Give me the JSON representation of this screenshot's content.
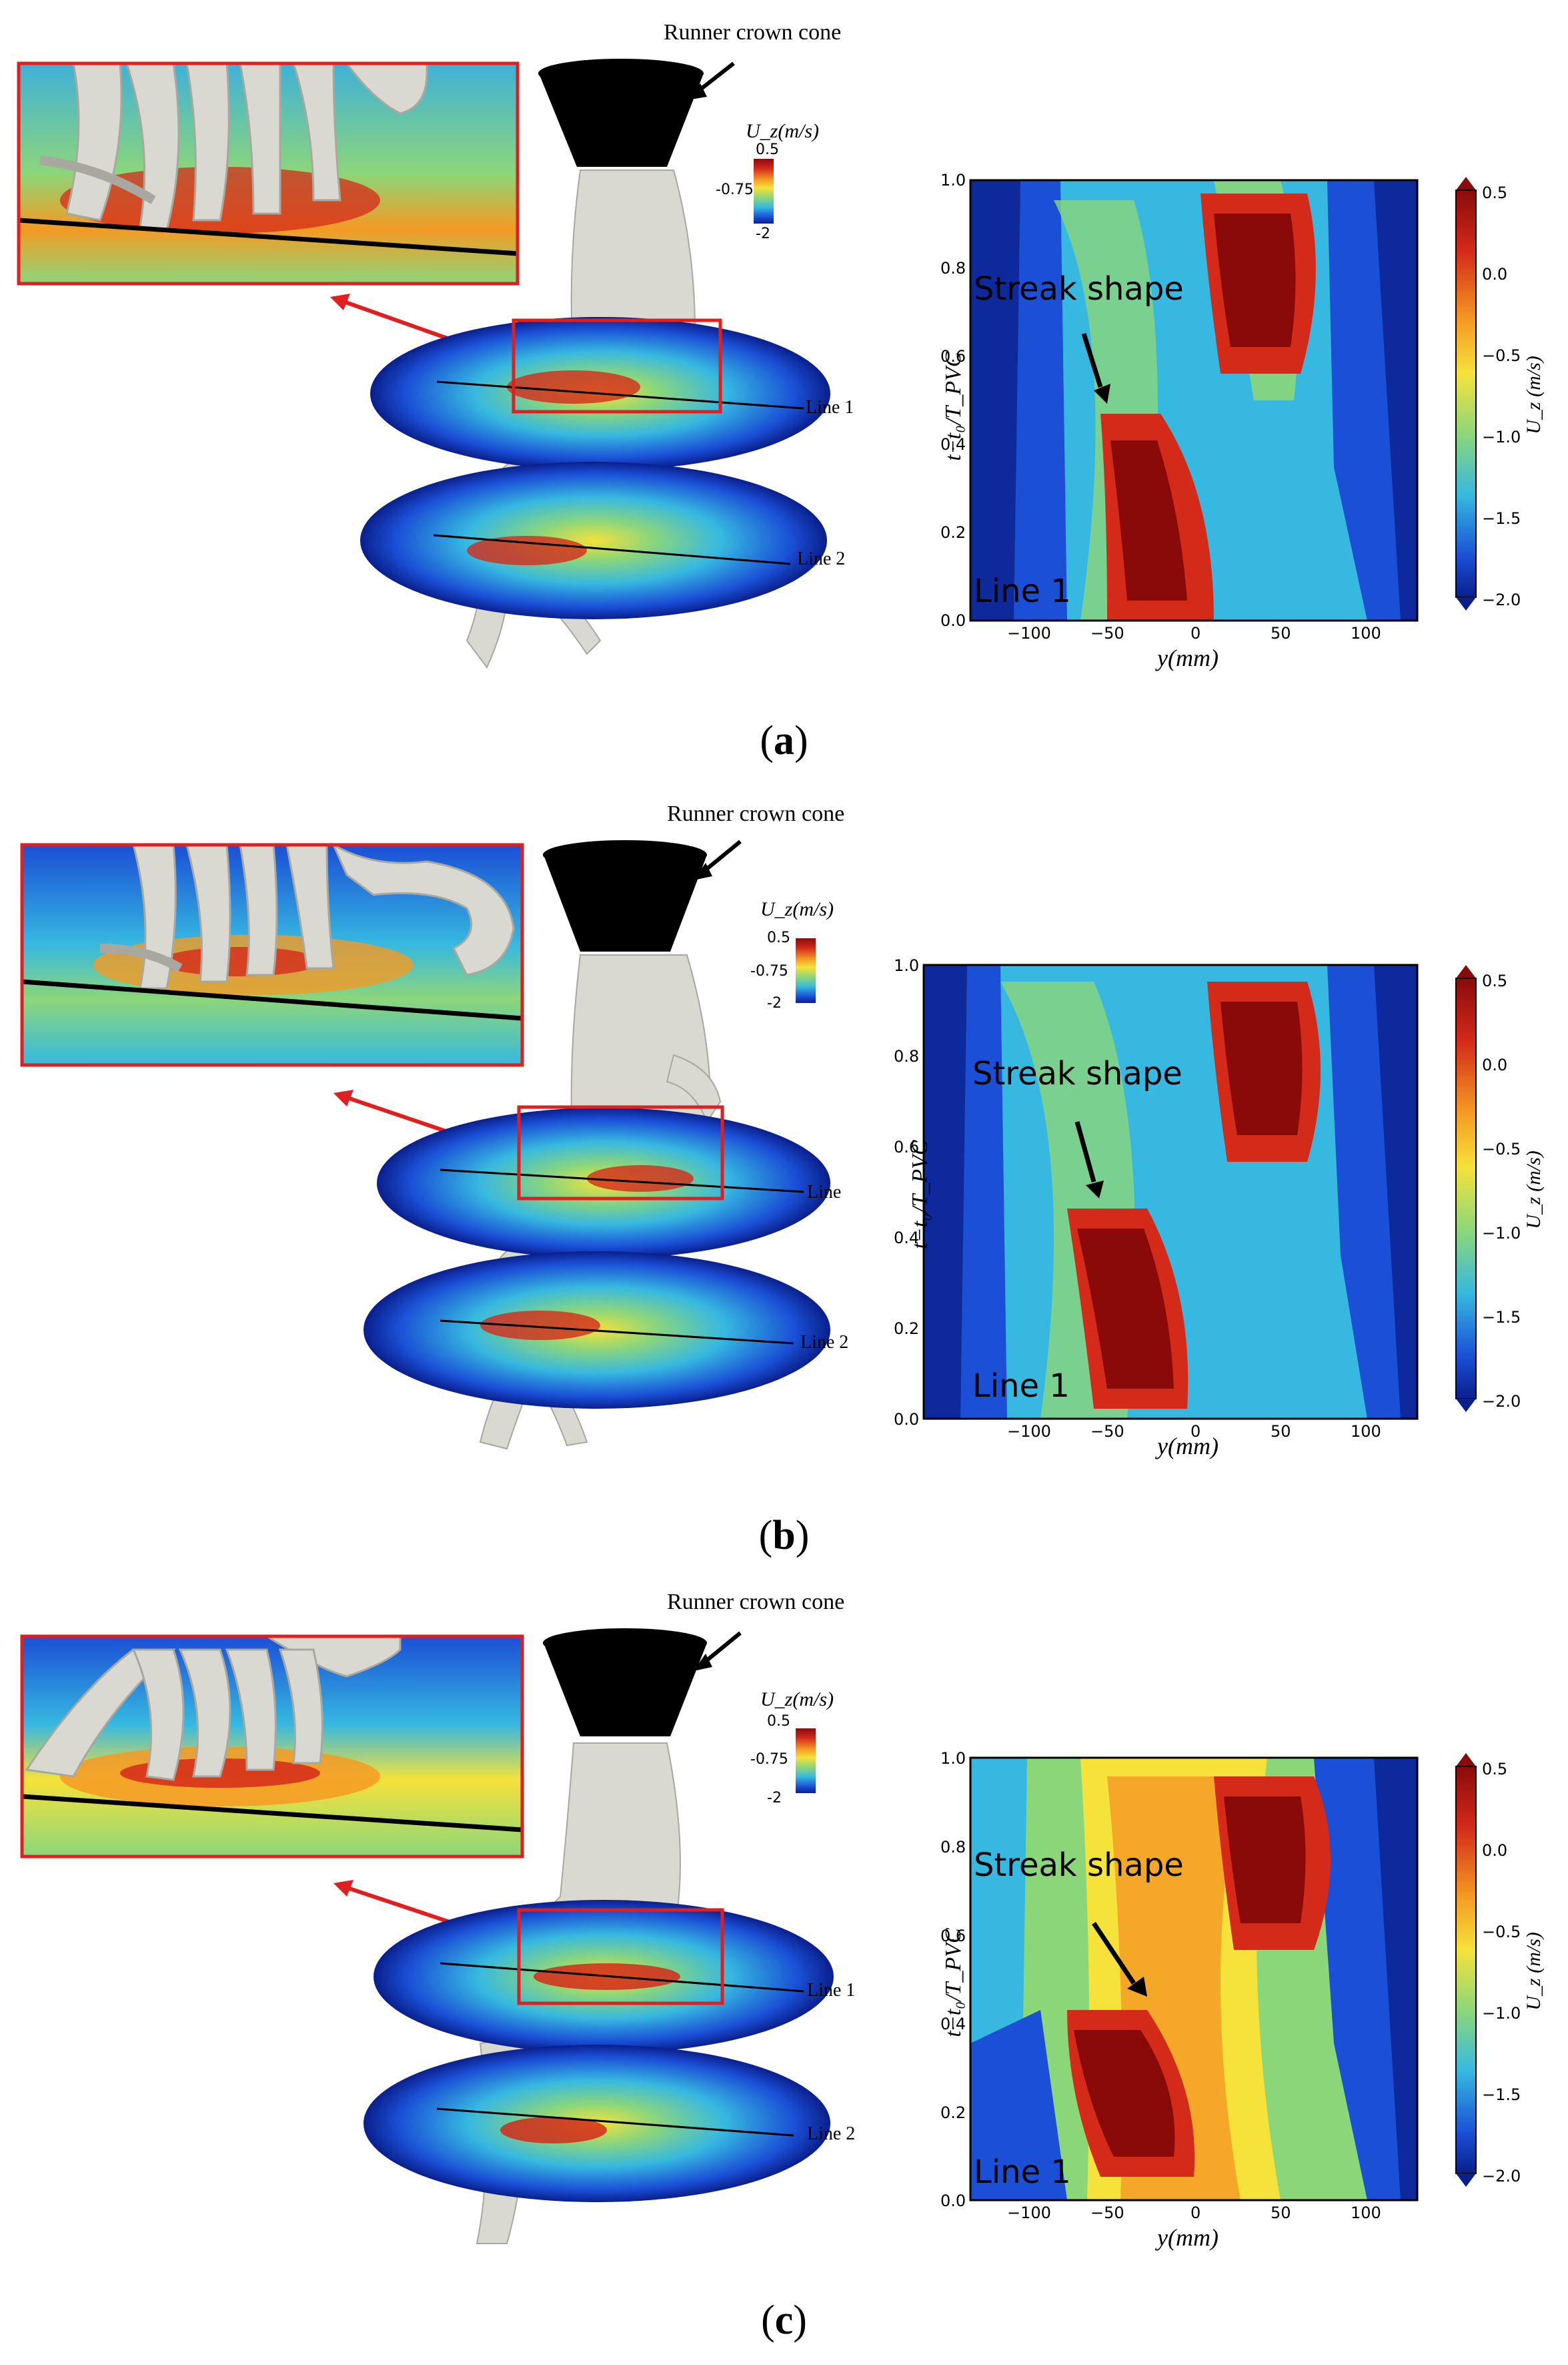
{
  "panels": [
    {
      "id": "a",
      "caption_letter": "a",
      "cone_label": "Runner crown cone",
      "scene_colorbar": {
        "title": "U_z(m/s)",
        "ticks": [
          "0.5",
          "-0.75",
          "-2"
        ]
      },
      "line1_label": "Line 1",
      "line2_label": "Line 2",
      "chart": {
        "annotation": "Streak shape",
        "line_label": "Line 1",
        "ylabel": "t−t₀/T_PVC",
        "xlabel": "y(mm)",
        "xticks": [
          "−100",
          "−50",
          "0",
          "50",
          "100"
        ],
        "yticks": [
          "0.0",
          "0.2",
          "0.4",
          "0.6",
          "0.8",
          "1.0"
        ],
        "cbar_ticks": [
          "0.5",
          "0.0",
          "−0.5",
          "−1.0",
          "−1.5",
          "−2.0"
        ],
        "cbar_label": "U_z (m/s)"
      }
    },
    {
      "id": "b",
      "caption_letter": "b",
      "cone_label": "Runner crown cone",
      "scene_colorbar": {
        "title": "U_z(m/s)",
        "ticks": [
          "0.5",
          "-0.75",
          "-2"
        ]
      },
      "line1_label": "Line",
      "line2_label": "Line 2",
      "chart": {
        "annotation": "Streak shape",
        "line_label": "Line 1",
        "ylabel": "t−t₀/T_PVC",
        "xlabel": "y(mm)",
        "xticks": [
          "−100",
          "−50",
          "0",
          "50",
          "100"
        ],
        "yticks": [
          "0.0",
          "0.2",
          "0.4",
          "0.6",
          "0.8",
          "1.0"
        ],
        "cbar_ticks": [
          "0.5",
          "0.0",
          "−0.5",
          "−1.0",
          "−1.5",
          "−2.0"
        ],
        "cbar_label": "U_z (m/s)"
      }
    },
    {
      "id": "c",
      "caption_letter": "c",
      "cone_label": "Runner crown cone",
      "scene_colorbar": {
        "title": "U_z(m/s)",
        "ticks": [
          "0.5",
          "-0.75",
          "-2"
        ]
      },
      "line1_label": "Line 1",
      "line2_label": "Line 2",
      "chart": {
        "annotation": "Streak shape",
        "line_label": "Line 1",
        "ylabel": "t−t₀/T_PVC",
        "xlabel": "y(mm)",
        "xticks": [
          "−100",
          "−50",
          "0",
          "50",
          "100"
        ],
        "yticks": [
          "0.0",
          "0.2",
          "0.4",
          "0.6",
          "0.8",
          "1.0"
        ],
        "cbar_ticks": [
          "0.5",
          "0.0",
          "−0.5",
          "−1.0",
          "−1.5",
          "−2.0"
        ],
        "cbar_label": "U_z (m/s)"
      }
    }
  ],
  "colors": {
    "deep_blue": "#0a1f8c",
    "blue": "#1a4fd6",
    "cyan": "#36b8e0",
    "green": "#8cd67a",
    "yellow": "#f5e23a",
    "orange": "#f59a23",
    "red": "#d42a1a",
    "dark_red": "#8a0a0a",
    "frame_red": "#e02020",
    "vortex_gray": "#d9d9d2"
  },
  "chart_data": [
    {
      "type": "heatmap",
      "panel": "a",
      "xlabel": "y(mm)",
      "ylabel": "t−t₀/T_PVC",
      "xlim": [
        -140,
        135
      ],
      "ylim": [
        0.0,
        1.0
      ],
      "zlim": [
        -2.0,
        0.5
      ],
      "colorbar_label": "U_z (m/s)",
      "annotations": [
        "Streak shape",
        "Line 1"
      ],
      "high_streaks": [
        {
          "y_range": [
            -70,
            20
          ],
          "t_range": [
            0.0,
            0.45
          ],
          "value": 0.5
        },
        {
          "y_range": [
            0,
            70
          ],
          "t_range": [
            0.55,
            1.0
          ],
          "value": 0.5
        }
      ]
    },
    {
      "type": "heatmap",
      "panel": "b",
      "xlabel": "y(mm)",
      "ylabel": "t−t₀/T_PVC",
      "xlim": [
        -140,
        135
      ],
      "ylim": [
        0.0,
        1.0
      ],
      "zlim": [
        -2.0,
        0.5
      ],
      "colorbar_label": "U_z (m/s)",
      "annotations": [
        "Streak shape",
        "Line 1"
      ],
      "high_streaks": [
        {
          "y_range": [
            -70,
            15
          ],
          "t_range": [
            0.05,
            0.45
          ],
          "value": 0.5
        },
        {
          "y_range": [
            0,
            70
          ],
          "t_range": [
            0.6,
            0.98
          ],
          "value": 0.5
        }
      ]
    },
    {
      "type": "heatmap",
      "panel": "c",
      "xlabel": "y(mm)",
      "ylabel": "t−t₀/T_PVC",
      "xlim": [
        -140,
        135
      ],
      "ylim": [
        0.0,
        1.0
      ],
      "zlim": [
        -2.0,
        0.5
      ],
      "colorbar_label": "U_z (m/s)",
      "annotations": [
        "Streak shape",
        "Line 1"
      ],
      "high_streaks": [
        {
          "y_range": [
            -70,
            -20
          ],
          "t_range": [
            0.05,
            0.35
          ],
          "value": 0.5
        },
        {
          "y_range": [
            10,
            75
          ],
          "t_range": [
            0.6,
            0.92
          ],
          "value": 0.5
        }
      ]
    }
  ]
}
